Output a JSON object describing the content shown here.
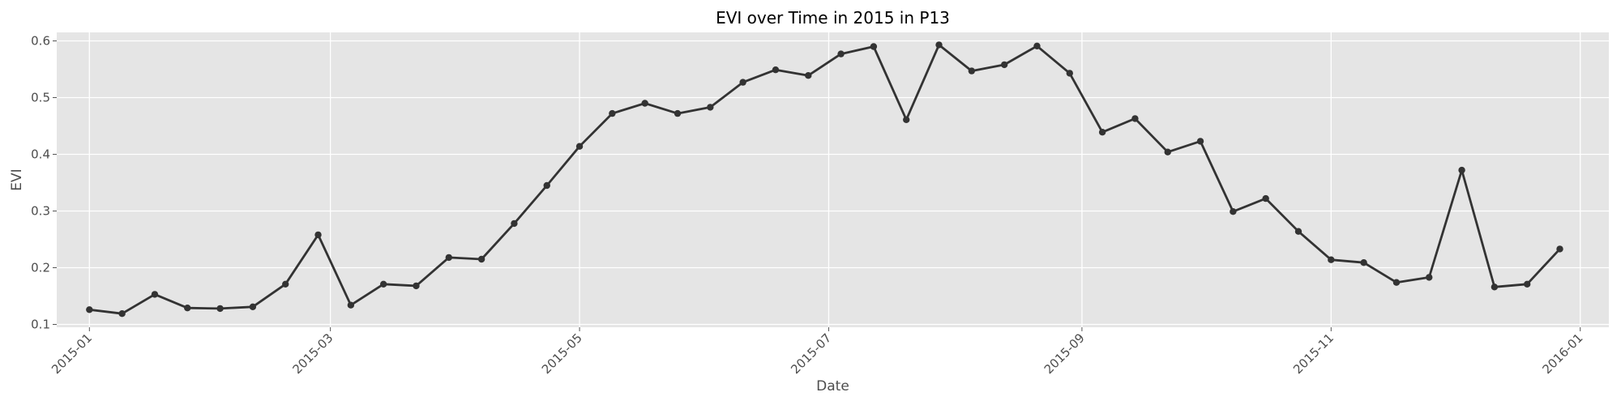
{
  "chart_data": {
    "type": "line",
    "title": "EVI over Time in 2015 in P13",
    "xlabel": "Date",
    "ylabel": "EVI",
    "x_axis_type": "date",
    "xlim": [
      "2014-12-24",
      "2016-01-08"
    ],
    "ylim": [
      0.095,
      0.615
    ],
    "x_ticks": [
      "2015-01",
      "2015-03",
      "2015-05",
      "2015-07",
      "2015-09",
      "2015-11",
      "2016-01"
    ],
    "x_tick_dates": [
      "2015-01-01",
      "2015-03-01",
      "2015-05-01",
      "2015-07-01",
      "2015-09-01",
      "2015-11-01",
      "2016-01-01"
    ],
    "y_ticks": [
      0.1,
      0.2,
      0.3,
      0.4,
      0.5,
      0.6
    ],
    "y_tick_labels": [
      "0.1",
      "0.2",
      "0.3",
      "0.4",
      "0.5",
      "0.6"
    ],
    "grid": true,
    "line_color": "#333333",
    "background_color": "#e5e5e5",
    "grid_color": "#ffffff",
    "series": [
      {
        "x": [
          "2015-01-01",
          "2015-01-09",
          "2015-01-17",
          "2015-01-25",
          "2015-02-02",
          "2015-02-10",
          "2015-02-18",
          "2015-02-26",
          "2015-03-06",
          "2015-03-14",
          "2015-03-22",
          "2015-03-30",
          "2015-04-07",
          "2015-04-15",
          "2015-04-23",
          "2015-05-01",
          "2015-05-09",
          "2015-05-17",
          "2015-05-25",
          "2015-06-02",
          "2015-06-10",
          "2015-06-18",
          "2015-06-26",
          "2015-07-04",
          "2015-07-12",
          "2015-07-20",
          "2015-07-28",
          "2015-08-05",
          "2015-08-13",
          "2015-08-21",
          "2015-08-29",
          "2015-09-06",
          "2015-09-14",
          "2015-09-22",
          "2015-09-30",
          "2015-10-08",
          "2015-10-16",
          "2015-10-24",
          "2015-11-01",
          "2015-11-09",
          "2015-11-17",
          "2015-11-25",
          "2015-12-03",
          "2015-12-11",
          "2015-12-19",
          "2015-12-27"
        ],
        "y": [
          0.126,
          0.119,
          0.153,
          0.129,
          0.128,
          0.131,
          0.171,
          0.258,
          0.134,
          0.171,
          0.168,
          0.218,
          0.215,
          0.278,
          0.345,
          0.414,
          0.472,
          0.49,
          0.472,
          0.483,
          0.527,
          0.549,
          0.539,
          0.577,
          0.59,
          0.461,
          0.593,
          0.547,
          0.558,
          0.591,
          0.543,
          0.439,
          0.463,
          0.404,
          0.423,
          0.299,
          0.322,
          0.264,
          0.214,
          0.209,
          0.174,
          0.183,
          0.372,
          0.166,
          0.171,
          0.233
        ]
      }
    ]
  }
}
